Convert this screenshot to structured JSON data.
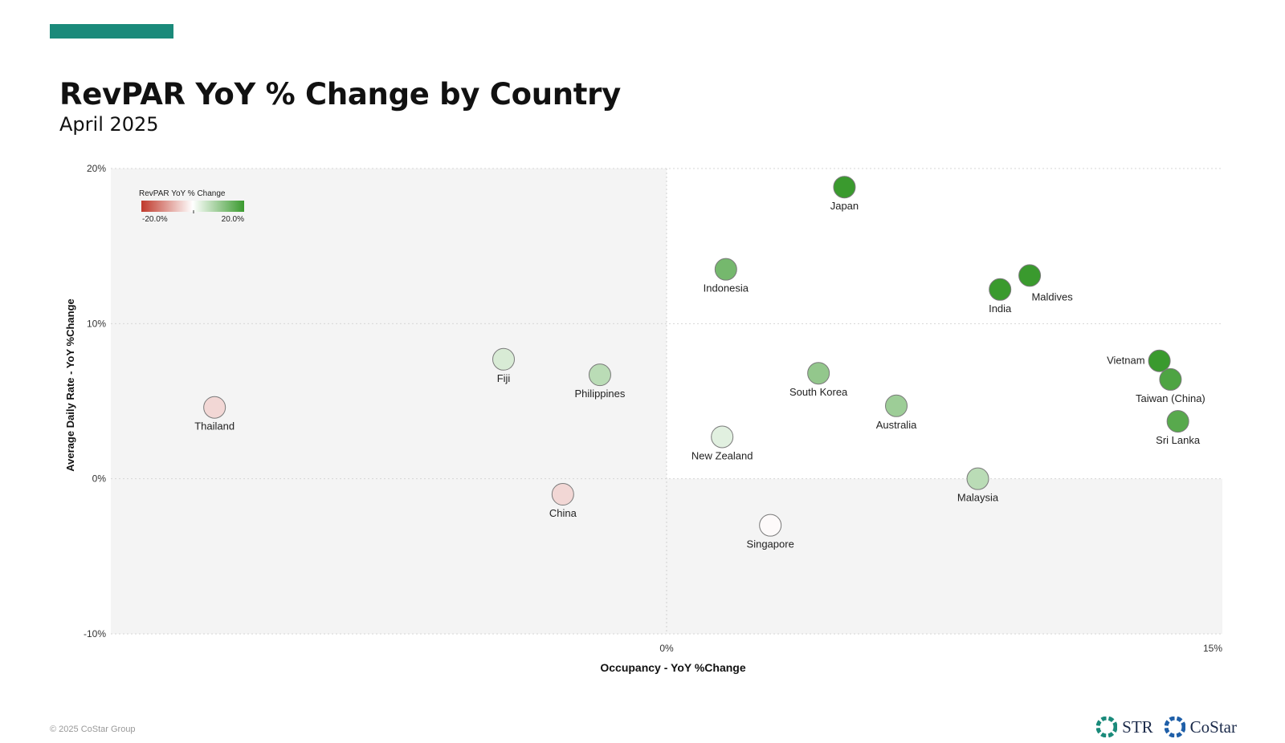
{
  "header": {
    "title": "RevPAR YoY % Change by Country",
    "subtitle": "April 2025"
  },
  "colors": {
    "accent": "#1a8a7a",
    "neg": "#c0392b",
    "neutral": "#ffffff",
    "pos": "#3a9a2e",
    "plot_bg": "#f4f4f4"
  },
  "chart_data": {
    "type": "scatter",
    "xlabel": "Occupancy - YoY %Change",
    "ylabel": "Average Daily Rate - YoY %Change",
    "xlim": [
      -15,
      15
    ],
    "ylim": [
      -10,
      20
    ],
    "x_ticks": [
      {
        "value": 0,
        "label": "0%"
      },
      {
        "value": 15,
        "label": "15%"
      }
    ],
    "y_ticks": [
      {
        "value": 20,
        "label": "20%"
      },
      {
        "value": 10,
        "label": "10%"
      },
      {
        "value": 0,
        "label": "0%"
      },
      {
        "value": -10,
        "label": "-10%"
      }
    ],
    "legend": {
      "title": "RevPAR YoY % Change",
      "min_label": "-20.0%",
      "max_label": "20.0%",
      "placement": "top-left"
    },
    "points": [
      {
        "name": "Japan",
        "x": 4.8,
        "y": 18.8,
        "color": 20,
        "label_pos": "below"
      },
      {
        "name": "Indonesia",
        "x": 1.6,
        "y": 13.5,
        "color": 14,
        "label_pos": "below"
      },
      {
        "name": "India",
        "x": 9.0,
        "y": 12.2,
        "color": 20,
        "label_pos": "below"
      },
      {
        "name": "Maldives",
        "x": 9.8,
        "y": 13.1,
        "color": 20,
        "label_pos": "below-right"
      },
      {
        "name": "Vietnam",
        "x": 13.3,
        "y": 7.6,
        "color": 20,
        "label_pos": "left"
      },
      {
        "name": "Taiwan (China)",
        "x": 13.6,
        "y": 6.4,
        "color": 18,
        "label_pos": "below"
      },
      {
        "name": "Sri Lanka",
        "x": 13.8,
        "y": 3.7,
        "color": 17,
        "label_pos": "below"
      },
      {
        "name": "South Korea",
        "x": 4.1,
        "y": 6.8,
        "color": 11,
        "label_pos": "below"
      },
      {
        "name": "Australia",
        "x": 6.2,
        "y": 4.7,
        "color": 10,
        "label_pos": "below"
      },
      {
        "name": "Malaysia",
        "x": 8.4,
        "y": 0.0,
        "color": 7,
        "label_pos": "below"
      },
      {
        "name": "New Zealand",
        "x": 1.5,
        "y": 2.7,
        "color": 3,
        "label_pos": "below"
      },
      {
        "name": "Singapore",
        "x": 2.8,
        "y": -3.0,
        "color": -0.5,
        "label_pos": "below"
      },
      {
        "name": "Fiji",
        "x": -4.4,
        "y": 7.7,
        "color": 4,
        "label_pos": "below"
      },
      {
        "name": "Philippines",
        "x": -1.8,
        "y": 6.7,
        "color": 7,
        "label_pos": "below"
      },
      {
        "name": "Thailand",
        "x": -12.2,
        "y": 4.6,
        "color": -4,
        "label_pos": "below"
      },
      {
        "name": "China",
        "x": -2.8,
        "y": -1.0,
        "color": -4,
        "label_pos": "below"
      }
    ]
  },
  "footer": {
    "copyright": "© 2025 CoStar Group",
    "logos": [
      "STR",
      "CoStar"
    ]
  }
}
